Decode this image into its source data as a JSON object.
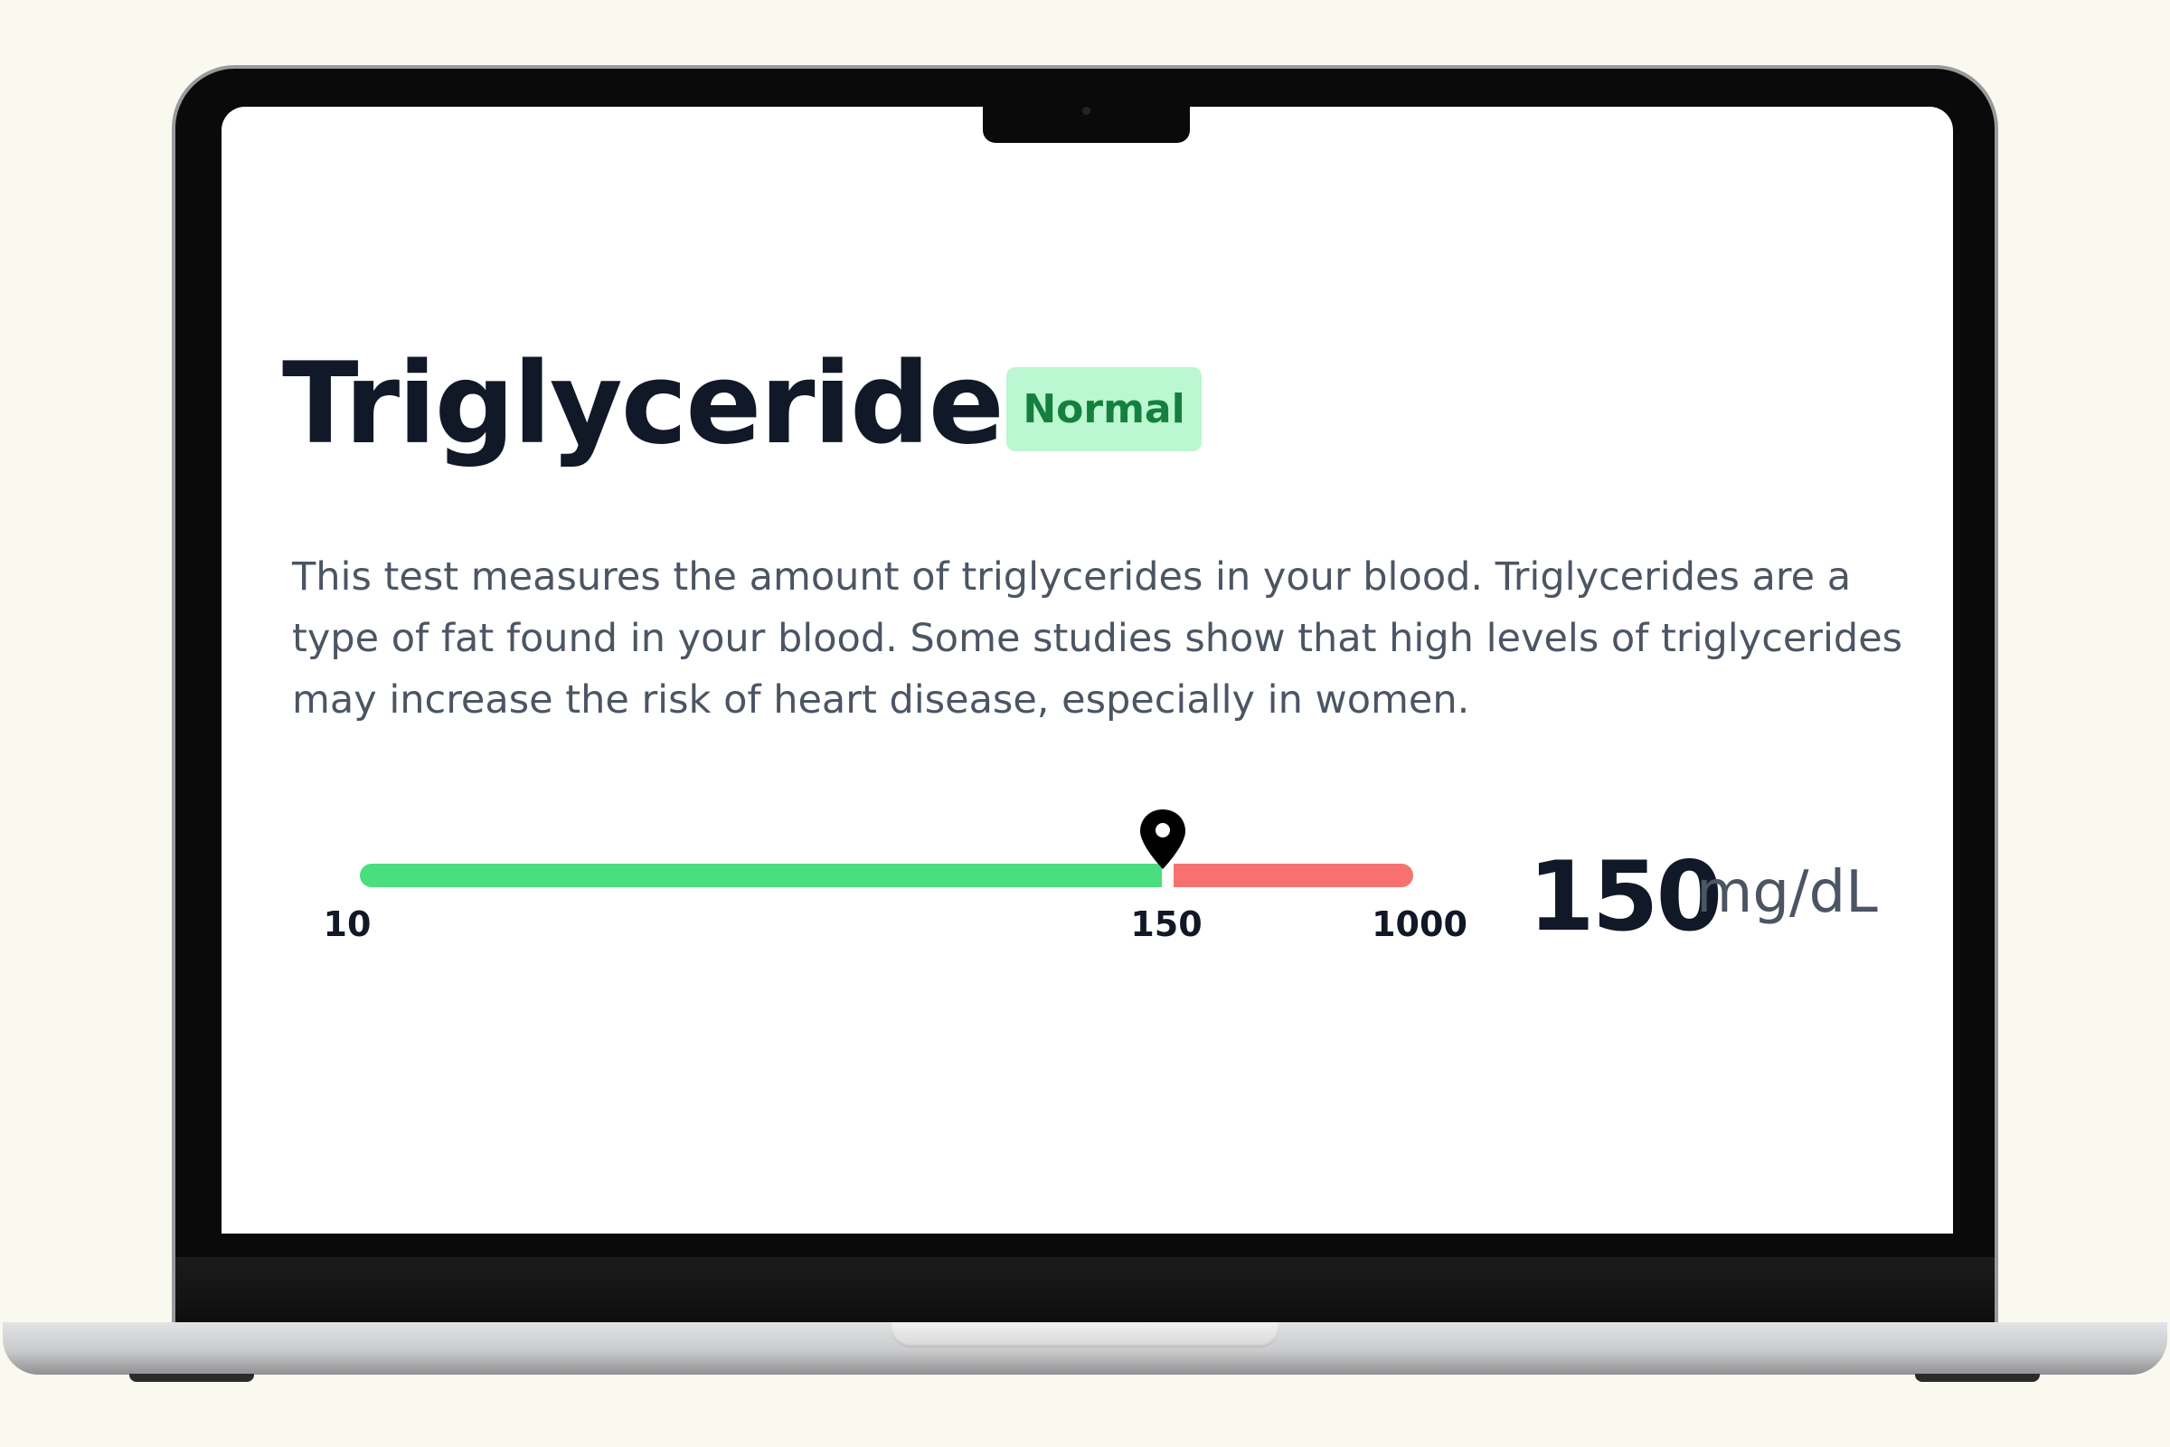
{
  "card": {
    "title": "Triglycerides",
    "status_badge": "Normal",
    "description": "This test measures the amount of triglycerides in your blood. Triglycerides are a type of fat found in your blood. Some studies show that high levels of triglycerides may increase the risk of heart disease, especially in women."
  },
  "range": {
    "min_label": "10",
    "threshold_label": "150",
    "max_label": "1000",
    "marker_value": 150,
    "marker_icon": "map-pin-icon",
    "normal_color": "#4ade80",
    "high_color": "#f87171"
  },
  "result": {
    "value": "150",
    "unit": "mg/dL"
  },
  "colors": {
    "badge_bg": "#bbf7d0",
    "badge_text": "#15803d",
    "background": "#f9f9f0"
  }
}
